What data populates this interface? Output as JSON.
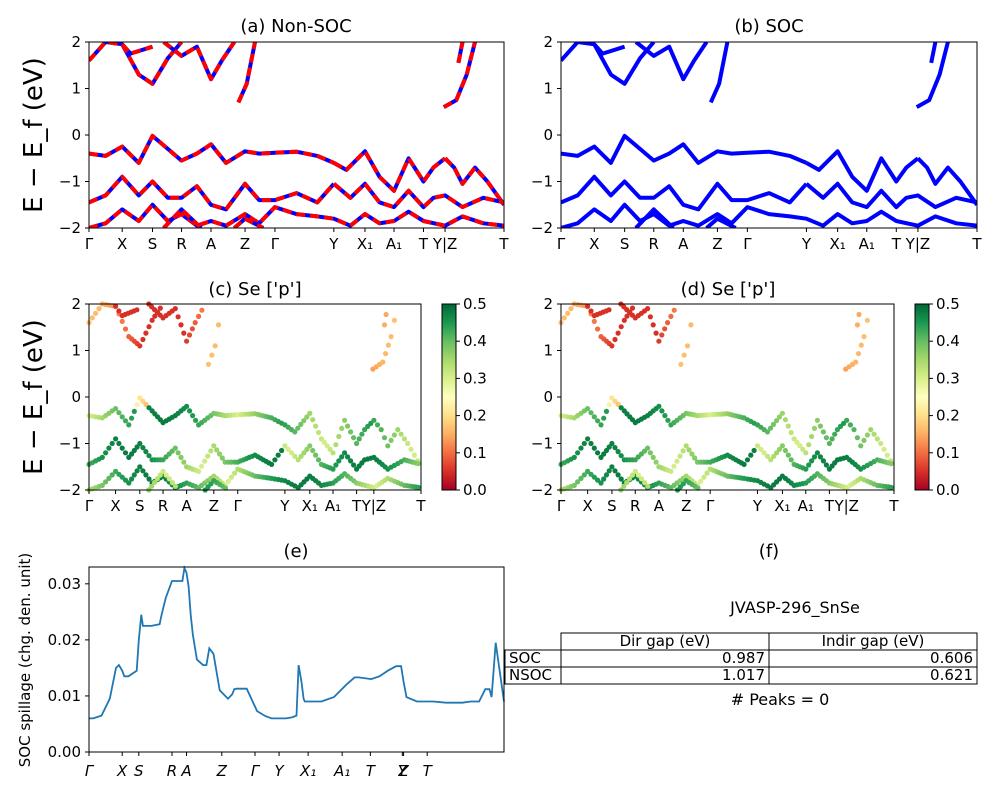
{
  "chart_data": [
    {
      "panel": "a",
      "type": "line",
      "title": "(a) Non-SOC",
      "ylabel": "E − E_f (eV)",
      "ylim": [
        -2,
        2
      ],
      "yticks": [
        "−2",
        "−1",
        "0",
        "1",
        "2"
      ],
      "kpath_labels": [
        "Γ",
        "X",
        "S",
        "R",
        "A",
        "Z",
        "Γ",
        "Y",
        "X₁",
        "A₁",
        "T",
        "Y|Z",
        "T"
      ],
      "kpath_positions": [
        0,
        0.08,
        0.153,
        0.223,
        0.294,
        0.376,
        0.448,
        0.59,
        0.665,
        0.735,
        0.806,
        0.858,
        1
      ],
      "series_colors": [
        "#0000ff",
        "#ff0000"
      ],
      "bands": [
        [
          0,
          -0.4,
          0.04,
          -0.45,
          0.08,
          -0.25,
          0.12,
          -0.6,
          0.153,
          -0.02,
          0.19,
          -0.3,
          0.223,
          -0.55,
          0.26,
          -0.4,
          0.294,
          -0.2,
          0.33,
          -0.6,
          0.376,
          -0.35,
          0.41,
          -0.4,
          0.448,
          -0.38,
          0.5,
          -0.36,
          0.55,
          -0.45,
          0.59,
          -0.6
        ],
        [
          0.59,
          -0.6,
          0.62,
          -0.75,
          0.665,
          -0.35,
          0.7,
          -0.9,
          0.735,
          -1.2,
          0.77,
          -0.5,
          0.806,
          -1.0,
          0.83,
          -0.7,
          0.858,
          -0.5
        ],
        [
          0.858,
          -0.5,
          0.88,
          -0.7,
          0.9,
          -1.05,
          0.93,
          -0.7,
          0.96,
          -1.0,
          1,
          -1.5
        ],
        [
          0,
          -1.45,
          0.04,
          -1.3,
          0.08,
          -0.9,
          0.12,
          -1.3,
          0.153,
          -1.0,
          0.19,
          -1.35,
          0.223,
          -1.35,
          0.26,
          -1.1,
          0.294,
          -1.5,
          0.33,
          -1.6,
          0.376,
          -1.05,
          0.41,
          -1.4,
          0.448,
          -1.4,
          0.5,
          -1.25,
          0.55,
          -1.45,
          0.59,
          -1.05
        ],
        [
          0.59,
          -1.05,
          0.63,
          -1.35,
          0.665,
          -1.05,
          0.7,
          -1.45,
          0.735,
          -1.55,
          0.77,
          -1.2,
          0.806,
          -1.55,
          0.83,
          -1.35,
          0.858,
          -1.3,
          0.9,
          -1.55,
          0.95,
          -1.35,
          1,
          -1.45
        ],
        [
          0,
          -2.0,
          0.04,
          -1.9,
          0.08,
          -1.6,
          0.12,
          -1.85,
          0.153,
          -1.5,
          0.19,
          -1.85,
          0.223,
          -1.7,
          0.26,
          -1.95,
          0.294,
          -1.85,
          0.33,
          -1.95,
          0.376,
          -1.7,
          0.41,
          -1.9,
          0.448,
          -1.55,
          0.5,
          -1.7,
          0.55,
          -1.75,
          0.59,
          -1.8,
          0.63,
          -1.95,
          0.665,
          -1.7,
          0.7,
          -1.9,
          0.735,
          -1.85,
          0.77,
          -1.65,
          0.806,
          -1.85,
          0.858,
          -1.95,
          0.9,
          -1.75,
          0.95,
          -1.9,
          1,
          -1.95
        ],
        [
          0.18,
          -2.0,
          0.223,
          -1.6,
          0.27,
          -2.0
        ],
        [
          0.35,
          -2.0,
          0.376,
          -1.8,
          0.42,
          -2.0
        ],
        [
          0,
          1.6,
          0.04,
          2.0,
          0.08,
          1.95,
          0.12,
          1.3,
          0.153,
          1.1,
          0.19,
          1.65,
          0.223,
          2.0
        ],
        [
          0.08,
          1.95,
          0.1,
          1.75,
          0.153,
          1.9
        ],
        [
          0.18,
          2.0,
          0.223,
          1.7,
          0.26,
          1.9,
          0.294,
          1.2,
          0.32,
          1.6,
          0.35,
          2.0
        ],
        [
          0.36,
          0.7,
          0.38,
          1.1,
          0.4,
          2.0
        ],
        [
          0.855,
          0.6,
          0.885,
          0.75,
          0.91,
          1.3,
          0.93,
          2.0
        ],
        [
          0.89,
          1.55,
          0.9,
          2.0
        ]
      ]
    },
    {
      "panel": "b",
      "type": "line",
      "title": "(b) SOC",
      "ylim": [
        -2,
        2
      ],
      "yticks": [
        "−2",
        "−1",
        "0",
        "1",
        "2"
      ],
      "kpath_labels": [
        "Γ",
        "X",
        "S",
        "R",
        "A",
        "Z",
        "Γ",
        "Y",
        "X₁",
        "A₁",
        "T",
        "Y|Z",
        "T"
      ],
      "series_colors": [
        "#0000ff"
      ]
    },
    {
      "panel": "c",
      "type": "scatter",
      "title": "(c)  Se ['p']",
      "ylabel": "E − E_f (eV)",
      "ylim": [
        -2,
        2
      ],
      "yticks": [
        "−2",
        "−1",
        "0",
        "1",
        "2"
      ],
      "kpath_labels": [
        "Γ",
        "X",
        "S",
        "R",
        "A",
        "Z",
        "Γ",
        "Y",
        "X₁",
        "A₁",
        "T",
        "Y|Z",
        "T"
      ],
      "colorbar": {
        "min": 0.0,
        "max": 0.5,
        "ticks": [
          "0.0",
          "0.1",
          "0.2",
          "0.3",
          "0.4",
          "0.5"
        ],
        "colormap": "RdYlGn"
      }
    },
    {
      "panel": "d",
      "type": "scatter",
      "title": "(d) Se ['p']",
      "ylim": [
        -2,
        2
      ],
      "yticks": [
        "−2",
        "−1",
        "0",
        "1",
        "2"
      ],
      "kpath_labels": [
        "Γ",
        "X",
        "S",
        "R",
        "A",
        "Z",
        "Γ",
        "Y",
        "X₁",
        "A₁",
        "T",
        "Y|Z",
        "T"
      ],
      "colorbar": {
        "min": 0.0,
        "max": 0.5,
        "ticks": [
          "0.0",
          "0.1",
          "0.2",
          "0.3",
          "0.4",
          "0.5"
        ],
        "colormap": "RdYlGn"
      }
    },
    {
      "panel": "e",
      "type": "line",
      "title": "(e)",
      "ylabel": "SOC spillage (chg. den. unit)",
      "ylim": [
        0,
        0.033
      ],
      "yticks": [
        "0.00",
        "0.01",
        "0.02",
        "0.03"
      ],
      "xtick_labels": [
        "Γ",
        "X",
        "S",
        "R",
        "A",
        "Z",
        "Γ",
        "Y",
        "X₁",
        "A₁",
        "T",
        "Y",
        "Z",
        "T"
      ],
      "xtick_positions": [
        0,
        0.08,
        0.12,
        0.2,
        0.235,
        0.32,
        0.4,
        0.458,
        0.528,
        0.61,
        0.678,
        0.755,
        0.758,
        0.815
      ],
      "color": "#1f77b4",
      "x": [
        0,
        0.01,
        0.03,
        0.05,
        0.065,
        0.072,
        0.08,
        0.085,
        0.095,
        0.115,
        0.12,
        0.126,
        0.13,
        0.135,
        0.15,
        0.17,
        0.175,
        0.185,
        0.2,
        0.215,
        0.225,
        0.23,
        0.235,
        0.24,
        0.245,
        0.25,
        0.26,
        0.275,
        0.283,
        0.29,
        0.3,
        0.315,
        0.335,
        0.345,
        0.35,
        0.355,
        0.38,
        0.405,
        0.425,
        0.44,
        0.452,
        0.46,
        0.475,
        0.49,
        0.5,
        0.505,
        0.512,
        0.517,
        0.52,
        0.53,
        0.56,
        0.59,
        0.62,
        0.64,
        0.65,
        0.68,
        0.7,
        0.72,
        0.74,
        0.752,
        0.758,
        0.765,
        0.79,
        0.83,
        0.86,
        0.9,
        0.92,
        0.93,
        0.94,
        0.955,
        0.965,
        0.97,
        0.98,
        1.0
      ],
      "y": [
        0.006,
        0.006,
        0.0065,
        0.0095,
        0.015,
        0.0155,
        0.0145,
        0.0135,
        0.0135,
        0.0145,
        0.02,
        0.0245,
        0.0225,
        0.0225,
        0.0225,
        0.0228,
        0.0245,
        0.0275,
        0.0305,
        0.0305,
        0.0305,
        0.0328,
        0.032,
        0.0295,
        0.0245,
        0.021,
        0.0165,
        0.0155,
        0.0155,
        0.0185,
        0.0175,
        0.011,
        0.0095,
        0.0103,
        0.0112,
        0.0113,
        0.0113,
        0.0073,
        0.0064,
        0.006,
        0.006,
        0.006,
        0.006,
        0.0062,
        0.0065,
        0.0155,
        0.0125,
        0.0095,
        0.009,
        0.009,
        0.009,
        0.0098,
        0.012,
        0.0133,
        0.0133,
        0.013,
        0.0135,
        0.0145,
        0.0153,
        0.0153,
        0.0125,
        0.0098,
        0.009,
        0.009,
        0.0088,
        0.0088,
        0.009,
        0.009,
        0.009,
        0.0112,
        0.0112,
        0.0098,
        0.0195,
        0.009
      ]
    },
    {
      "panel": "f",
      "type": "table",
      "title": "(f)",
      "subtitle": "JVASP-296_SnSe",
      "columns": [
        "Dir gap (eV)",
        "Indir gap (eV)"
      ],
      "rows": [
        {
          "label": "SOC",
          "values": [
            "0.987",
            "0.606"
          ]
        },
        {
          "label": "NSOC",
          "values": [
            "1.017",
            "0.621"
          ]
        }
      ],
      "footer": "# Peaks = 0"
    }
  ]
}
